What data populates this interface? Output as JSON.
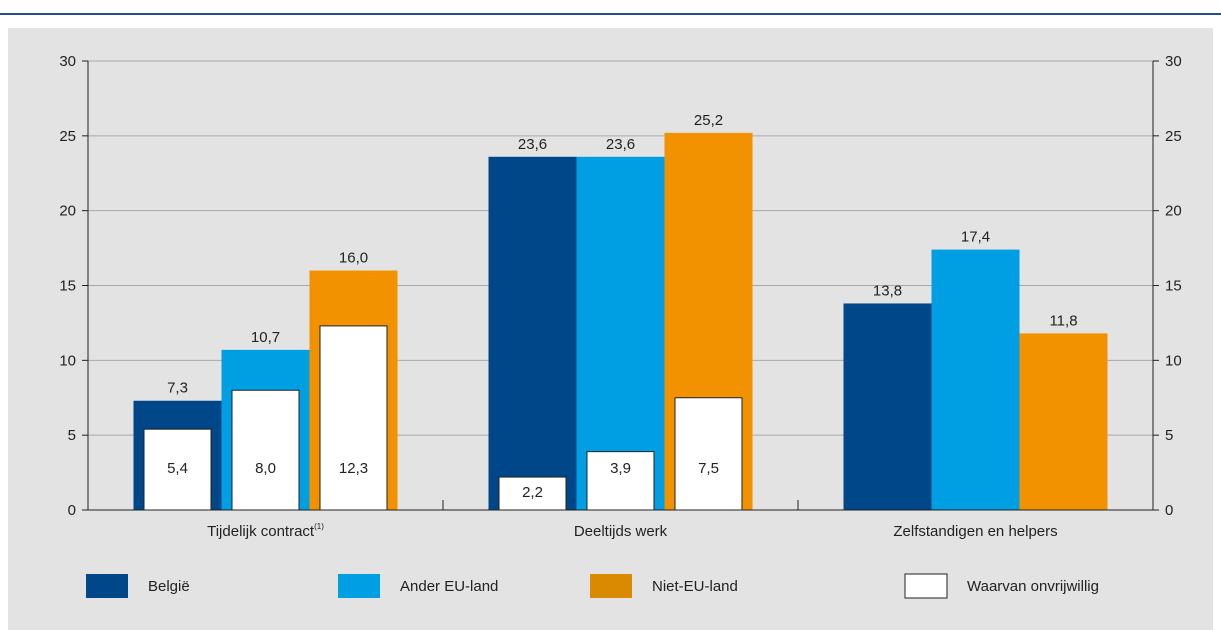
{
  "chart_data": {
    "type": "bar",
    "categories": [
      "Tijdelijk contract",
      "Deeltijds werk",
      "Zelfstandigen en helpers"
    ],
    "category_note": "(1)",
    "series": [
      {
        "name": "België",
        "color": "#00478a",
        "values": [
          7.3,
          23.6,
          13.8
        ]
      },
      {
        "name": "Ander EU-land",
        "color": "#009fe3",
        "values": [
          10.7,
          23.6,
          17.4
        ]
      },
      {
        "name": "Niet-EU-land",
        "color": "#f39200",
        "values": [
          16.0,
          25.2,
          11.8
        ]
      }
    ],
    "inner_series": {
      "name": "Waarvan onvrijwillig",
      "color": "#ffffff",
      "values": [
        [
          5.4,
          8.0,
          12.3
        ],
        [
          2.2,
          3.9,
          7.5
        ],
        [
          null,
          null,
          null
        ]
      ]
    },
    "value_labels": [
      [
        "7,3",
        "10,7",
        "16,0"
      ],
      [
        "23,6",
        "23,6",
        "25,2"
      ],
      [
        "13,8",
        "17,4",
        "11,8"
      ]
    ],
    "inner_labels": [
      [
        "5,4",
        "8,0",
        "12,3"
      ],
      [
        "2,2",
        "3,9",
        "7,5"
      ],
      [
        null,
        null,
        null
      ]
    ],
    "yticks": [
      "0",
      "5",
      "10",
      "15",
      "20",
      "25",
      "30"
    ],
    "ylim": [
      0,
      30
    ],
    "grid": true,
    "axis_left": true,
    "axis_right": true,
    "legend_position": "bottom",
    "legend_color_nieteu": "#d98a00"
  }
}
